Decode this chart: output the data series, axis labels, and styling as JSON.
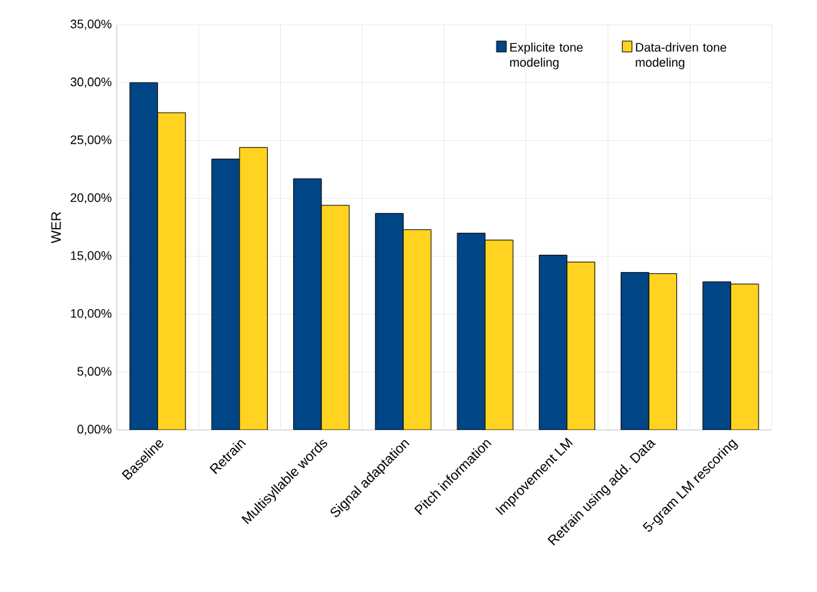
{
  "chart_data": {
    "type": "bar",
    "ylabel": "WER",
    "categories": [
      "Baseline",
      "Retrain",
      "Multisyllable words",
      "Signal adaptation",
      "Pitch information",
      "Improvement LM",
      "Retrain using add. Data",
      "5-gram LM rescoring"
    ],
    "series": [
      {
        "name": "Explicite tone modeling",
        "color": "#004586",
        "values": [
          30.0,
          23.4,
          21.7,
          18.7,
          17.0,
          15.1,
          13.6,
          12.8
        ]
      },
      {
        "name": "Data-driven tone modeling",
        "color": "#ffd320",
        "values": [
          27.4,
          24.4,
          19.4,
          17.3,
          16.4,
          14.5,
          13.5,
          12.6
        ]
      }
    ],
    "ylim": [
      0,
      35
    ],
    "yticks": [
      {
        "value": 0,
        "label": "0,00%"
      },
      {
        "value": 5,
        "label": "5,00%"
      },
      {
        "value": 10,
        "label": "10,00%"
      },
      {
        "value": 15,
        "label": "15,00%"
      },
      {
        "value": 20,
        "label": "20,00%"
      },
      {
        "value": 25,
        "label": "25,00%"
      },
      {
        "value": 30,
        "label": "30,00%"
      },
      {
        "value": 35,
        "label": "35,00%"
      }
    ],
    "grid": true,
    "legend": "top right"
  }
}
